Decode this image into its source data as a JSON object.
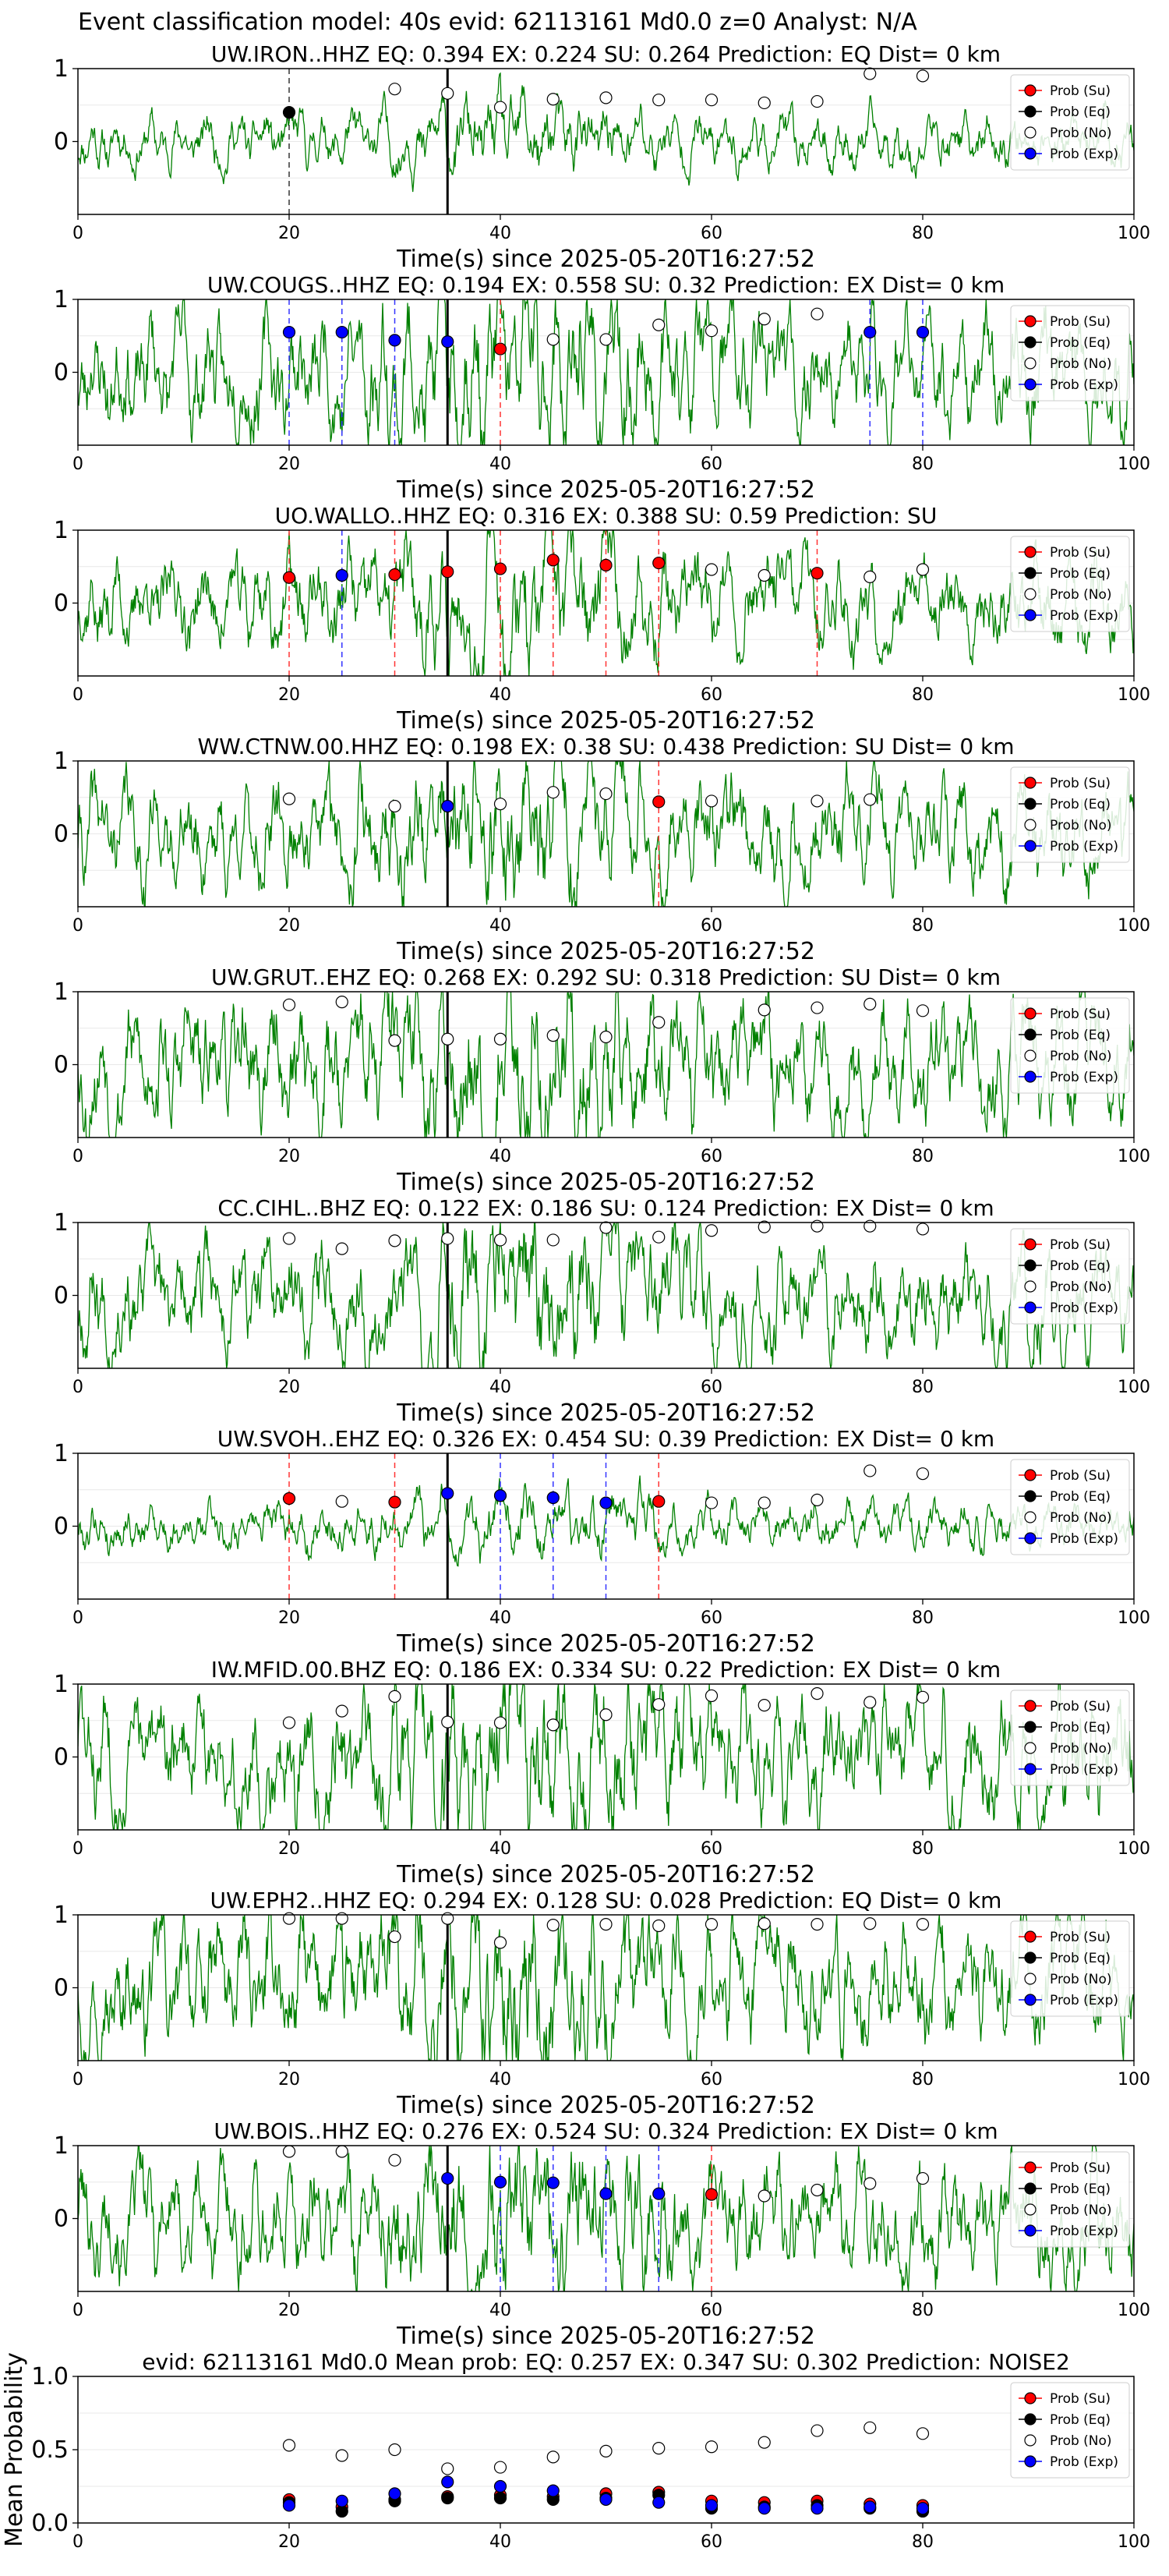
{
  "suptitle": "Event classification model: 40s evid: 62113161 Md0.0 z=0 Analyst: N/A",
  "legend": [
    "Prob (Su)",
    "Prob (Eq)",
    "Prob (No)",
    "Prob (Exp)"
  ],
  "colors": {
    "su": "#ff0000",
    "eq": "#000000",
    "no": "#ffffff",
    "exp": "#0000ff",
    "trace": "#008000"
  },
  "chart_data": [
    {
      "type": "line",
      "title": "UW.IRON..HHZ   EQ: 0.394  EX: 0.224  SU: 0.264   Prediction: EQ    Dist= 0 km",
      "xlabel": "Time(s) since 2025-05-20T16:27:52",
      "ylabel": "",
      "xlim": [
        0,
        100
      ],
      "ylim": [
        -1,
        1
      ],
      "xticks": [
        "0",
        "20",
        "40",
        "60",
        "80",
        "100"
      ],
      "yticks": [
        "0",
        "1"
      ],
      "pick_time": 35,
      "trace_amp": 0.25,
      "trace_seed": 11,
      "series": [
        {
          "name": "Prob (Eq)",
          "x": [
            20
          ],
          "y": [
            0.4
          ]
        },
        {
          "name": "Prob (No)",
          "x": [
            30,
            35,
            40,
            45,
            50,
            55,
            60,
            65,
            70,
            75,
            80
          ],
          "y": [
            0.72,
            0.66,
            0.47,
            0.58,
            0.6,
            0.57,
            0.57,
            0.53,
            0.55,
            0.93,
            0.9
          ]
        }
      ]
    },
    {
      "type": "line",
      "title": "UW.COUGS..HHZ   EQ: 0.194  EX: 0.558  SU: 0.32   Prediction: EX    Dist= 0 km",
      "xlabel": "Time(s) since 2025-05-20T16:27:52",
      "ylabel": "",
      "xlim": [
        0,
        100
      ],
      "ylim": [
        -1,
        1
      ],
      "xticks": [
        "0",
        "20",
        "40",
        "60",
        "80",
        "100"
      ],
      "yticks": [
        "0",
        "1"
      ],
      "pick_time": 35,
      "trace_amp": 0.55,
      "trace_seed": 23,
      "series": [
        {
          "name": "Prob (Su)",
          "x": [
            40
          ],
          "y": [
            0.32
          ]
        },
        {
          "name": "Prob (Exp)",
          "x": [
            20,
            25,
            30,
            35,
            75,
            80
          ],
          "y": [
            0.55,
            0.55,
            0.44,
            0.42,
            0.55,
            0.55
          ]
        },
        {
          "name": "Prob (No)",
          "x": [
            45,
            50,
            55,
            60,
            65,
            70
          ],
          "y": [
            0.45,
            0.45,
            0.65,
            0.57,
            0.73,
            0.8
          ]
        }
      ]
    },
    {
      "type": "line",
      "title": "UO.WALLO..HHZ   EQ: 0.316  EX: 0.388  SU: 0.59   Prediction: SU",
      "xlabel": "Time(s) since 2025-05-20T16:27:52",
      "ylabel": "",
      "xlim": [
        0,
        100
      ],
      "ylim": [
        -1,
        1
      ],
      "xticks": [
        "0",
        "20",
        "40",
        "60",
        "80",
        "100"
      ],
      "yticks": [
        "0",
        "1"
      ],
      "pick_time": 35,
      "trace_amp": 0.45,
      "trace_seed": 37,
      "series": [
        {
          "name": "Prob (Su)",
          "x": [
            20,
            30,
            35,
            40,
            45,
            50,
            55,
            70
          ],
          "y": [
            0.35,
            0.39,
            0.43,
            0.47,
            0.59,
            0.52,
            0.55,
            0.41
          ]
        },
        {
          "name": "Prob (Exp)",
          "x": [
            25
          ],
          "y": [
            0.38
          ]
        },
        {
          "name": "Prob (No)",
          "x": [
            60,
            65,
            75,
            80
          ],
          "y": [
            0.46,
            0.38,
            0.36,
            0.46
          ]
        }
      ]
    },
    {
      "type": "line",
      "title": "WW.CTNW.00.HHZ   EQ: 0.198  EX: 0.38  SU: 0.438   Prediction: SU    Dist= 0 km",
      "xlabel": "Time(s) since 2025-05-20T16:27:52",
      "ylabel": "",
      "xlim": [
        0,
        100
      ],
      "ylim": [
        -1,
        1
      ],
      "xticks": [
        "0",
        "20",
        "40",
        "60",
        "80",
        "100"
      ],
      "yticks": [
        "0",
        "1"
      ],
      "pick_time": 35,
      "trace_amp": 0.5,
      "trace_seed": 41,
      "series": [
        {
          "name": "Prob (Su)",
          "x": [
            55
          ],
          "y": [
            0.44
          ]
        },
        {
          "name": "Prob (Exp)",
          "x": [
            35
          ],
          "y": [
            0.38
          ]
        },
        {
          "name": "Prob (No)",
          "x": [
            20,
            30,
            40,
            45,
            50,
            60,
            70,
            75
          ],
          "y": [
            0.48,
            0.38,
            0.41,
            0.57,
            0.55,
            0.45,
            0.45,
            0.47
          ]
        }
      ]
    },
    {
      "type": "line",
      "title": "UW.GRUT..EHZ   EQ: 0.268  EX: 0.292  SU: 0.318   Prediction: SU    Dist= 0 km",
      "xlabel": "Time(s) since 2025-05-20T16:27:52",
      "ylabel": "",
      "xlim": [
        0,
        100
      ],
      "ylim": [
        -1,
        1
      ],
      "xticks": [
        "0",
        "20",
        "40",
        "60",
        "80",
        "100"
      ],
      "yticks": [
        "0",
        "1"
      ],
      "pick_time": 35,
      "trace_amp": 0.6,
      "trace_seed": 53,
      "series": [
        {
          "name": "Prob (No)",
          "x": [
            20,
            25,
            30,
            35,
            40,
            45,
            50,
            55,
            65,
            70,
            75,
            80
          ],
          "y": [
            0.82,
            0.86,
            0.33,
            0.35,
            0.35,
            0.4,
            0.38,
            0.58,
            0.75,
            0.78,
            0.83,
            0.74
          ]
        }
      ]
    },
    {
      "type": "line",
      "title": "CC.CIHL..BHZ   EQ: 0.122  EX: 0.186  SU: 0.124   Prediction: EX    Dist= 0 km",
      "xlabel": "Time(s) since 2025-05-20T16:27:52",
      "ylabel": "",
      "xlim": [
        0,
        100
      ],
      "ylim": [
        -1,
        1
      ],
      "xticks": [
        "0",
        "20",
        "40",
        "60",
        "80",
        "100"
      ],
      "yticks": [
        "0",
        "1"
      ],
      "pick_time": 35,
      "trace_amp": 0.5,
      "trace_seed": 67,
      "series": [
        {
          "name": "Prob (No)",
          "x": [
            20,
            25,
            30,
            35,
            40,
            45,
            50,
            55,
            60,
            65,
            70,
            75,
            80
          ],
          "y": [
            0.78,
            0.64,
            0.75,
            0.78,
            0.76,
            0.76,
            0.93,
            0.8,
            0.89,
            0.94,
            0.95,
            0.95,
            0.91
          ]
        }
      ]
    },
    {
      "type": "line",
      "title": "UW.SVOH..EHZ   EQ: 0.326  EX: 0.454  SU: 0.39   Prediction: EX    Dist= 0 km",
      "xlabel": "Time(s) since 2025-05-20T16:27:52",
      "ylabel": "",
      "xlim": [
        0,
        100
      ],
      "ylim": [
        -1,
        1
      ],
      "xticks": [
        "0",
        "20",
        "40",
        "60",
        "80",
        "100"
      ],
      "yticks": [
        "0",
        "1"
      ],
      "pick_time": 35,
      "trace_amp": 0.22,
      "trace_seed": 79,
      "series": [
        {
          "name": "Prob (Su)",
          "x": [
            20,
            30,
            55
          ],
          "y": [
            0.38,
            0.33,
            0.34
          ]
        },
        {
          "name": "Prob (Exp)",
          "x": [
            35,
            40,
            45,
            50
          ],
          "y": [
            0.45,
            0.42,
            0.39,
            0.32
          ]
        },
        {
          "name": "Prob (No)",
          "x": [
            25,
            60,
            65,
            70,
            75,
            80
          ],
          "y": [
            0.34,
            0.32,
            0.32,
            0.36,
            0.76,
            0.72
          ]
        }
      ]
    },
    {
      "type": "line",
      "title": "IW.MFID.00.BHZ   EQ: 0.186  EX: 0.334  SU: 0.22   Prediction: EX    Dist= 0 km",
      "xlabel": "Time(s) since 2025-05-20T16:27:52",
      "ylabel": "",
      "xlim": [
        0,
        100
      ],
      "ylim": [
        -1,
        1
      ],
      "xticks": [
        "0",
        "20",
        "40",
        "60",
        "80",
        "100"
      ],
      "yticks": [
        "0",
        "1"
      ],
      "pick_time": 35,
      "trace_amp": 0.6,
      "trace_seed": 83,
      "series": [
        {
          "name": "Prob (No)",
          "x": [
            20,
            25,
            30,
            35,
            40,
            45,
            50,
            55,
            60,
            65,
            70,
            75,
            80
          ],
          "y": [
            0.47,
            0.63,
            0.83,
            0.48,
            0.47,
            0.44,
            0.58,
            0.72,
            0.84,
            0.71,
            0.87,
            0.75,
            0.82
          ]
        }
      ]
    },
    {
      "type": "line",
      "title": "UW.EPH2..HHZ   EQ: 0.294  EX: 0.128  SU: 0.028   Prediction: EQ    Dist= 0 km",
      "xlabel": "Time(s) since 2025-05-20T16:27:52",
      "ylabel": "",
      "xlim": [
        0,
        100
      ],
      "ylim": [
        -1,
        1
      ],
      "xticks": [
        "0",
        "20",
        "40",
        "60",
        "80",
        "100"
      ],
      "yticks": [
        "0",
        "1"
      ],
      "pick_time": 35,
      "trace_amp": 0.6,
      "trace_seed": 97,
      "series": [
        {
          "name": "Prob (No)",
          "x": [
            20,
            25,
            30,
            35,
            40,
            45,
            50,
            55,
            60,
            65,
            70,
            75,
            80
          ],
          "y": [
            0.95,
            0.95,
            0.7,
            0.95,
            0.62,
            0.86,
            0.87,
            0.85,
            0.87,
            0.88,
            0.87,
            0.88,
            0.87
          ]
        }
      ]
    },
    {
      "type": "line",
      "title": "UW.BOIS..HHZ   EQ: 0.276  EX: 0.524  SU: 0.324   Prediction: EX    Dist= 0 km",
      "xlabel": "Time(s) since 2025-05-20T16:27:52",
      "ylabel": "",
      "xlim": [
        0,
        100
      ],
      "ylim": [
        -1,
        1
      ],
      "xticks": [
        "0",
        "20",
        "40",
        "60",
        "80",
        "100"
      ],
      "yticks": [
        "0",
        "1"
      ],
      "pick_time": 35,
      "trace_amp": 0.55,
      "trace_seed": 101,
      "series": [
        {
          "name": "Prob (Su)",
          "x": [
            60
          ],
          "y": [
            0.33
          ]
        },
        {
          "name": "Prob (Exp)",
          "x": [
            35,
            40,
            45,
            50,
            55
          ],
          "y": [
            0.55,
            0.5,
            0.49,
            0.34,
            0.34
          ]
        },
        {
          "name": "Prob (No)",
          "x": [
            20,
            25,
            30,
            65,
            70,
            75,
            80
          ],
          "y": [
            0.92,
            0.92,
            0.8,
            0.31,
            0.39,
            0.48,
            0.55
          ]
        }
      ]
    },
    {
      "type": "scatter",
      "title": "evid: 62113161  Md0.0   Mean prob:   EQ: 0.257  EX: 0.347  SU: 0.302   Prediction: NOISE2",
      "xlabel": "",
      "ylabel": "Mean Probability",
      "xlim": [
        0,
        100
      ],
      "ylim": [
        0,
        1
      ],
      "xticks": [
        "0",
        "20",
        "40",
        "60",
        "80",
        "100"
      ],
      "yticks": [
        "0.0",
        "0.5",
        "1.0"
      ],
      "series": [
        {
          "name": "Prob (Su)",
          "x": [
            20,
            25,
            30,
            35,
            40,
            45,
            50,
            55,
            60,
            65,
            70,
            75,
            80
          ],
          "y": [
            0.16,
            0.11,
            0.16,
            0.18,
            0.19,
            0.18,
            0.2,
            0.21,
            0.15,
            0.14,
            0.15,
            0.13,
            0.12
          ]
        },
        {
          "name": "Prob (Eq)",
          "x": [
            20,
            25,
            30,
            35,
            40,
            45,
            50,
            55,
            60,
            65,
            70,
            75,
            80
          ],
          "y": [
            0.14,
            0.08,
            0.15,
            0.17,
            0.17,
            0.16,
            0.17,
            0.19,
            0.1,
            0.11,
            0.12,
            0.1,
            0.08
          ]
        },
        {
          "name": "Prob (No)",
          "x": [
            20,
            25,
            30,
            35,
            40,
            45,
            50,
            55,
            60,
            65,
            70,
            75,
            80
          ],
          "y": [
            0.53,
            0.46,
            0.5,
            0.37,
            0.38,
            0.45,
            0.49,
            0.51,
            0.52,
            0.55,
            0.63,
            0.65,
            0.61
          ]
        },
        {
          "name": "Prob (Exp)",
          "x": [
            20,
            25,
            30,
            35,
            40,
            45,
            50,
            55,
            60,
            65,
            70,
            75,
            80
          ],
          "y": [
            0.12,
            0.15,
            0.2,
            0.28,
            0.25,
            0.22,
            0.16,
            0.14,
            0.12,
            0.1,
            0.1,
            0.11,
            0.1
          ]
        }
      ]
    }
  ]
}
